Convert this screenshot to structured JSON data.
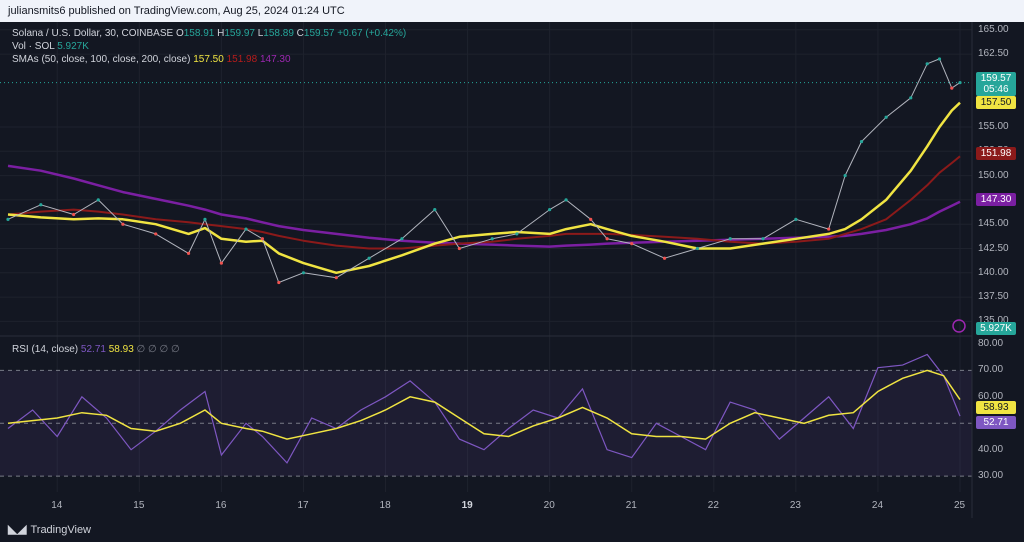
{
  "header": {
    "publish_line": "juliansmits6 published on TradingView.com, Aug 25, 2024 01:24 UTC"
  },
  "legend": {
    "symbol": "Solana / U.S. Dollar, 30, COINBASE",
    "o_label": "O",
    "o": "158.91",
    "h_label": "H",
    "h": "159.97",
    "l_label": "L",
    "l": "158.89",
    "c_label": "C",
    "c": "159.57",
    "change": "+0.67 (+0.42%)",
    "vol_label": "Vol · SOL",
    "vol": "5.927K",
    "sma_label": "SMAs (50, close, 100, close, 200, close)",
    "sma50": "157.50",
    "sma100": "151.98",
    "sma200": "147.30",
    "rsi_label": "RSI (14, close)",
    "rsi": "52.71",
    "rsi_ma": "58.93",
    "rsi_extra": "∅ ∅ ∅ ∅"
  },
  "price_tags": {
    "last": "159.57",
    "countdown": "05:46",
    "sma50": "157.50",
    "sma100": "151.98",
    "sma200": "147.30",
    "volume": "5.927K",
    "rsi_ma": "58.93",
    "rsi": "52.71"
  },
  "colors": {
    "up": "#26a69a",
    "down": "#ef5350",
    "sma50": "#f0e442",
    "sma100": "#8b1a1a",
    "sma200": "#7b1fa2",
    "rsi": "#7e57c2",
    "rsi_ma": "#f0e442"
  },
  "footer": {
    "brand": "TradingView",
    "logo_icon": "tradingview-logo-icon"
  },
  "chart_data": {
    "type": "line",
    "x_ticks": [
      "14",
      "15",
      "16",
      "17",
      "18",
      "19",
      "20",
      "21",
      "22",
      "23",
      "24",
      "25"
    ],
    "price_axis": {
      "ylim": [
        133.5,
        165.8
      ],
      "ticks": [
        "165.00",
        "162.50",
        "155.00",
        "152.50",
        "150.00",
        "147.50",
        "145.00",
        "142.50",
        "140.00",
        "137.50",
        "135.00"
      ]
    },
    "rsi_axis": {
      "ylim": [
        24,
        83
      ],
      "ticks": [
        "80.00",
        "70.00",
        "60.00",
        "50.00",
        "40.00",
        "30.00"
      ],
      "bands": [
        30,
        70
      ]
    },
    "x_day": [
      13.4,
      13.8,
      14.2,
      14.5,
      14.8,
      15.2,
      15.6,
      15.8,
      16.0,
      16.3,
      16.5,
      16.7,
      17.0,
      17.4,
      17.8,
      18.2,
      18.6,
      18.9,
      19.3,
      19.6,
      20.0,
      20.2,
      20.5,
      20.7,
      21.0,
      21.4,
      21.8,
      22.2,
      22.6,
      23.0,
      23.4,
      23.6,
      23.8,
      24.1,
      24.4,
      24.6,
      24.75,
      24.9,
      25.0
    ],
    "series": [
      {
        "name": "Solana / U.S. Dollar",
        "values": [
          145.5,
          147.0,
          146.0,
          147.5,
          145.0,
          144.0,
          142.0,
          145.5,
          141.0,
          144.5,
          143.5,
          139.0,
          140.0,
          139.5,
          141.5,
          143.5,
          146.5,
          142.5,
          143.5,
          144.0,
          146.5,
          147.5,
          145.5,
          143.5,
          143.0,
          141.5,
          142.5,
          143.5,
          143.5,
          145.5,
          144.5,
          150.0,
          153.5,
          156.0,
          158.0,
          161.5,
          162.0,
          159.0,
          159.57
        ]
      },
      {
        "name": "SMA 50",
        "values": [
          146.0,
          145.7,
          145.5,
          145.6,
          145.5,
          145.0,
          144.0,
          144.6,
          143.5,
          143.2,
          143.3,
          142.0,
          141.0,
          140.0,
          140.7,
          141.8,
          143.0,
          143.7,
          144.0,
          144.2,
          144.0,
          144.5,
          145.0,
          144.5,
          143.8,
          143.2,
          142.5,
          142.5,
          143.0,
          143.5,
          144.0,
          144.5,
          145.5,
          147.5,
          150.5,
          153.0,
          155.0,
          156.7,
          157.5
        ]
      },
      {
        "name": "SMA 100",
        "values": [
          146.0,
          146.3,
          146.5,
          146.3,
          146.0,
          145.5,
          145.2,
          145.0,
          144.8,
          144.5,
          144.2,
          143.8,
          143.3,
          142.8,
          142.5,
          142.5,
          142.8,
          143.0,
          143.2,
          143.5,
          143.8,
          144.0,
          144.0,
          144.0,
          143.9,
          143.7,
          143.5,
          143.2,
          143.0,
          143.2,
          143.5,
          144.0,
          144.5,
          145.5,
          147.5,
          149.0,
          150.3,
          151.3,
          151.98
        ]
      },
      {
        "name": "SMA 200",
        "values": [
          151.0,
          150.5,
          149.7,
          149.0,
          148.3,
          147.6,
          146.9,
          146.5,
          146.0,
          145.6,
          145.2,
          144.8,
          144.4,
          144.0,
          143.6,
          143.3,
          143.1,
          143.0,
          142.9,
          142.8,
          142.7,
          142.8,
          142.9,
          143.0,
          143.1,
          143.2,
          143.3,
          143.4,
          143.5,
          143.6,
          143.7,
          143.8,
          144.0,
          144.4,
          145.0,
          145.6,
          146.3,
          146.9,
          147.3
        ]
      }
    ],
    "rsi": {
      "x_day": [
        13.4,
        13.7,
        14.0,
        14.3,
        14.6,
        14.9,
        15.2,
        15.5,
        15.8,
        16.0,
        16.3,
        16.5,
        16.8,
        17.1,
        17.4,
        17.7,
        18.0,
        18.3,
        18.6,
        18.9,
        19.2,
        19.5,
        19.8,
        20.1,
        20.4,
        20.7,
        21.0,
        21.3,
        21.6,
        21.9,
        22.2,
        22.5,
        22.8,
        23.1,
        23.4,
        23.7,
        24.0,
        24.3,
        24.6,
        24.8,
        25.0
      ],
      "values": [
        48,
        55,
        45,
        60,
        52,
        40,
        47,
        55,
        62,
        38,
        50,
        45,
        35,
        52,
        48,
        55,
        60,
        66,
        58,
        44,
        40,
        48,
        55,
        52,
        63,
        40,
        37,
        50,
        45,
        40,
        58,
        55,
        44,
        52,
        60,
        48,
        71,
        72,
        76,
        68,
        52.71
      ],
      "ma_values": [
        50,
        51,
        52,
        54,
        53,
        48,
        47,
        50,
        55,
        50,
        48,
        47,
        44,
        46,
        48,
        51,
        55,
        60,
        58,
        52,
        46,
        45,
        49,
        52,
        56,
        52,
        46,
        45,
        45,
        44,
        50,
        54,
        52,
        50,
        53,
        54,
        62,
        67,
        70,
        68,
        58.93
      ]
    }
  }
}
